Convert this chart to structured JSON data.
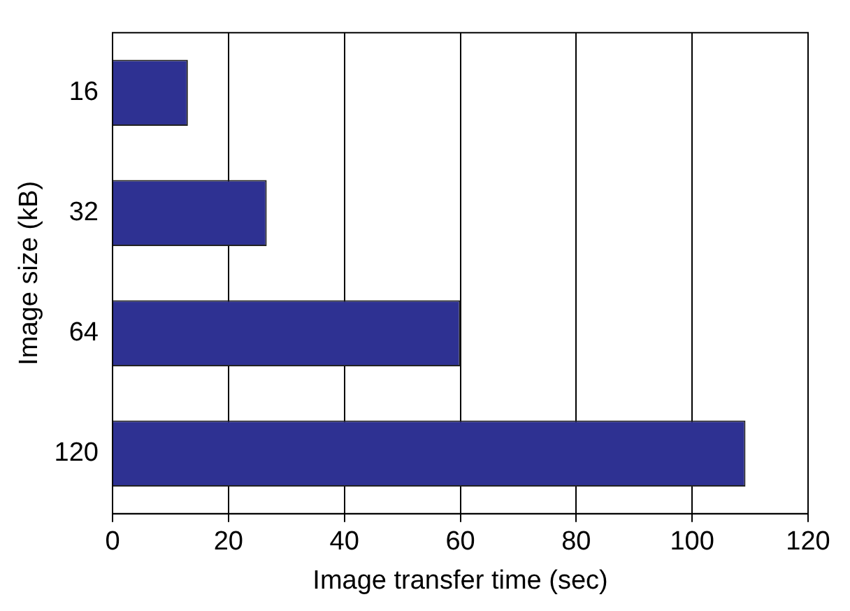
{
  "chart_data": {
    "type": "bar",
    "orientation": "horizontal",
    "xlabel": "Image transfer time (sec)",
    "ylabel": "Image size (kB)",
    "categories": [
      "16",
      "32",
      "64",
      "120"
    ],
    "values": [
      13,
      26.6,
      60,
      109.2
    ],
    "color": "#2e3192",
    "xlim": [
      0,
      120
    ],
    "xticks": [
      0,
      20,
      40,
      60,
      80,
      100,
      120
    ],
    "grid": "x",
    "legend": false
  }
}
